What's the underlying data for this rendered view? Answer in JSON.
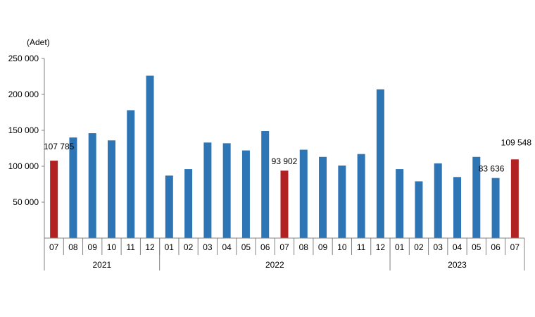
{
  "chart_data": {
    "type": "bar",
    "ylabel": "(Adet)",
    "ylim": [
      0,
      250000
    ],
    "yticks": [
      {
        "value": 50000,
        "label": "50 000"
      },
      {
        "value": 100000,
        "label": "100 000"
      },
      {
        "value": 150000,
        "label": "150 000"
      },
      {
        "value": 200000,
        "label": "200 000"
      },
      {
        "value": 250000,
        "label": "250 000"
      }
    ],
    "grid": false,
    "colors": {
      "default": "#2e75b6",
      "highlight": "#b22222",
      "axis": "#808080"
    },
    "years": [
      {
        "label": "2021",
        "count": 6
      },
      {
        "label": "2022",
        "count": 12
      },
      {
        "label": "2023",
        "count": 7
      }
    ],
    "categories": [
      "07",
      "08",
      "09",
      "10",
      "11",
      "12",
      "01",
      "02",
      "03",
      "04",
      "05",
      "06",
      "07",
      "08",
      "09",
      "10",
      "11",
      "12",
      "01",
      "02",
      "03",
      "04",
      "05",
      "06",
      "07"
    ],
    "values": [
      107785,
      140000,
      146000,
      136000,
      178000,
      226000,
      87000,
      96000,
      133000,
      132000,
      122000,
      149000,
      93902,
      123000,
      113000,
      101000,
      117000,
      207000,
      96000,
      79000,
      104000,
      85000,
      113000,
      83636,
      109548
    ],
    "highlight": [
      true,
      false,
      false,
      false,
      false,
      false,
      false,
      false,
      false,
      false,
      false,
      false,
      true,
      false,
      false,
      false,
      false,
      false,
      false,
      false,
      false,
      false,
      false,
      false,
      true
    ],
    "data_labels": [
      {
        "index": 0,
        "text": "107 785"
      },
      {
        "index": 12,
        "text": "93 902"
      },
      {
        "index": 23,
        "text": "83 636"
      },
      {
        "index": 24,
        "text": "109 548"
      }
    ]
  }
}
